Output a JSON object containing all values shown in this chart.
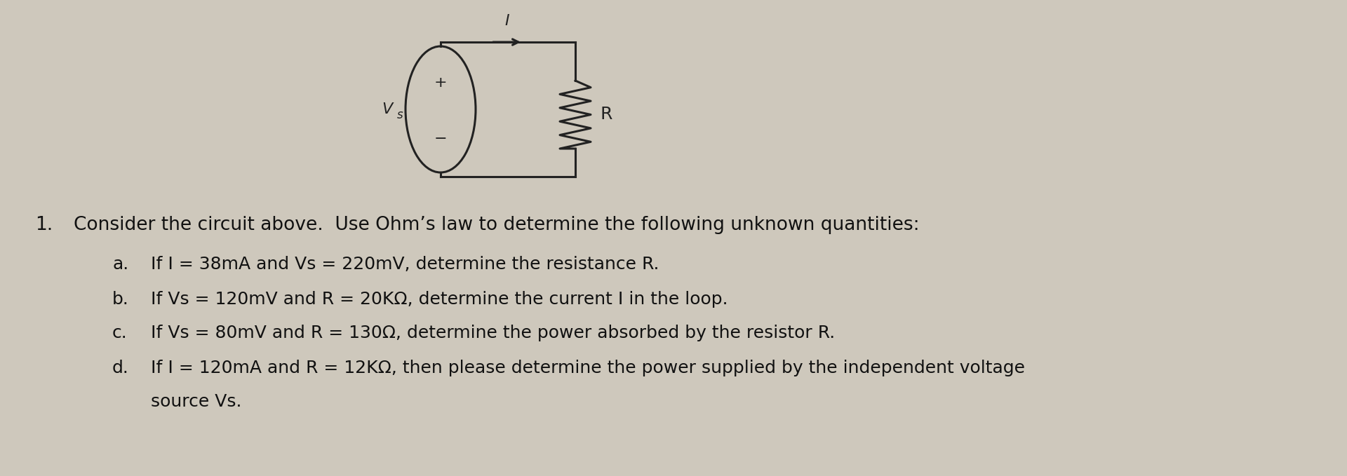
{
  "background_color": "#cec8bc",
  "title_num": "1.",
  "main_text": "Consider the circuit above.  Use Ohm’s law to determine the following unknown quantities:",
  "items": [
    {
      "label": "a.",
      "text": "If I = 38mA and Vs = 220mV, determine the resistance R."
    },
    {
      "label": "b.",
      "text": "If Vs = 120mV and R = 20KΩ, determine the current I in the loop."
    },
    {
      "label": "c.",
      "text": "If Vs = 80mV and R = 130Ω, determine the power absorbed by the resistor R."
    },
    {
      "label": "d.",
      "text": "If I = 120mA and R = 12KΩ, then please determine the power supplied by the independent voltage\nsource Vs."
    }
  ],
  "font_size_main": 19,
  "font_size_items": 18,
  "text_color": "#111111",
  "circuit_color": "#222222",
  "circuit_lw": 2.2,
  "vs_label_fontsize": 16,
  "pm_fontsize": 16,
  "r_label_fontsize": 18,
  "i_label_fontsize": 16,
  "arrow_fontsize": 14
}
